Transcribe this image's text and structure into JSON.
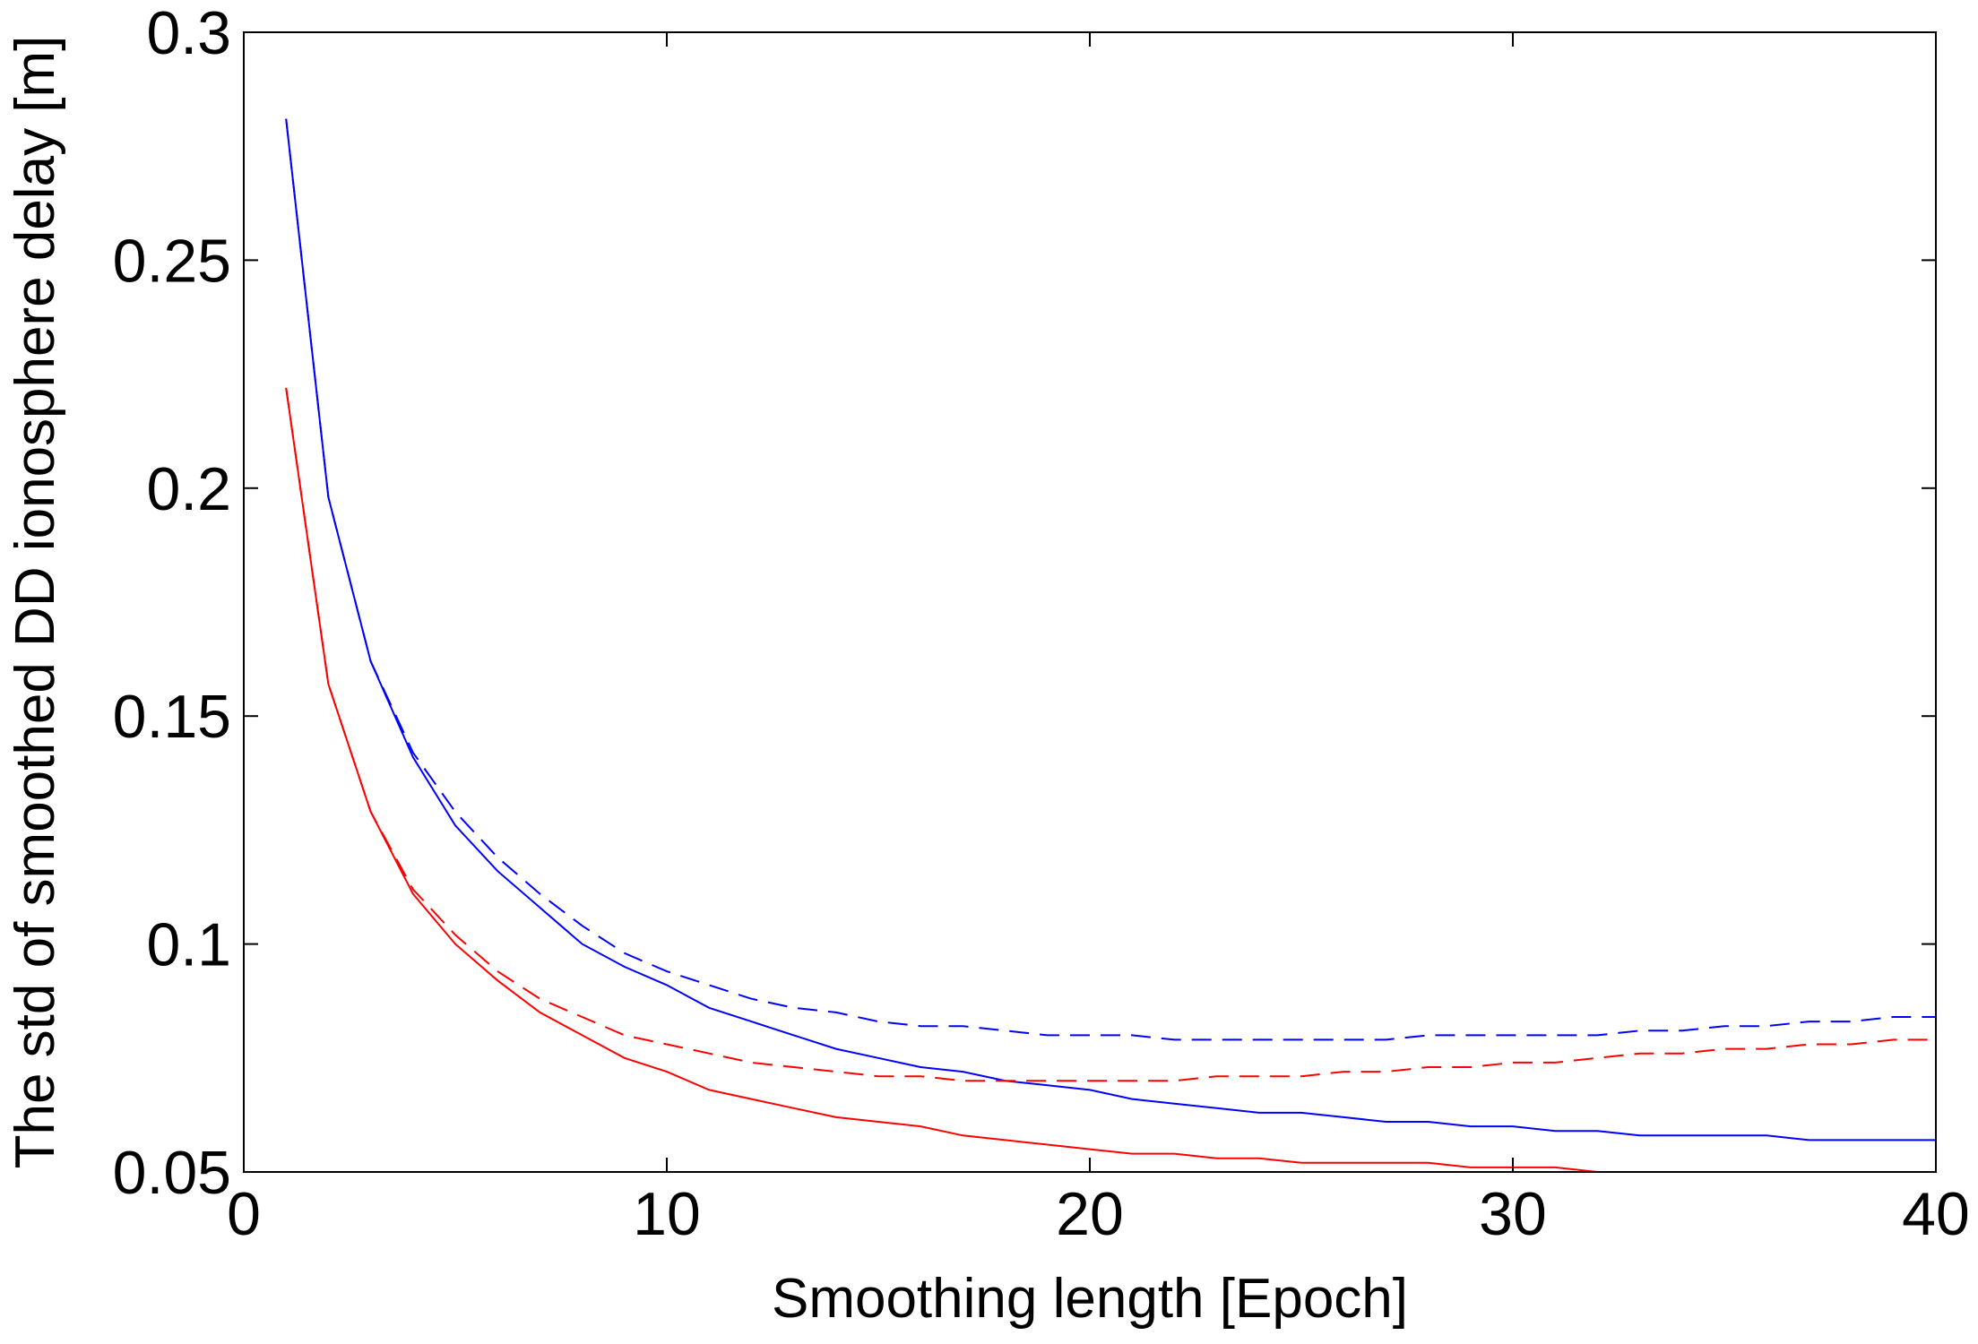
{
  "chart_data": {
    "type": "line",
    "title": "",
    "xlabel": "Smoothing length [Epoch]",
    "ylabel": "The std of smoothed DD ionosphere delay [m]",
    "xlim": [
      0,
      40
    ],
    "ylim": [
      0.05,
      0.3
    ],
    "xticks": [
      0,
      10,
      20,
      30,
      40
    ],
    "xtick_labels": [
      "0",
      "10",
      "20",
      "30",
      "40"
    ],
    "yticks": [
      0.05,
      0.1,
      0.15,
      0.2,
      0.25,
      0.3
    ],
    "ytick_labels": [
      "0.05",
      "0.1",
      "0.15",
      "0.2",
      "0.25",
      "0.3"
    ],
    "grid": false,
    "x": [
      1,
      2,
      3,
      4,
      5,
      6,
      7,
      8,
      9,
      10,
      11,
      12,
      13,
      14,
      15,
      16,
      17,
      18,
      19,
      20,
      21,
      22,
      23,
      24,
      25,
      26,
      27,
      28,
      29,
      30,
      31,
      32,
      33,
      34,
      35,
      36,
      37,
      38,
      39,
      40
    ],
    "series": [
      {
        "name": "blue-solid",
        "color": "#0000ff",
        "dash": "solid",
        "values": [
          0.281,
          0.198,
          0.162,
          0.141,
          0.126,
          0.116,
          0.108,
          0.1,
          0.095,
          0.091,
          0.086,
          0.083,
          0.08,
          0.077,
          0.075,
          0.073,
          0.072,
          0.07,
          0.069,
          0.068,
          0.066,
          0.065,
          0.064,
          0.063,
          0.063,
          0.062,
          0.061,
          0.061,
          0.06,
          0.06,
          0.059,
          0.059,
          0.058,
          0.058,
          0.058,
          0.058,
          0.057,
          0.057,
          0.057,
          0.057
        ]
      },
      {
        "name": "blue-dashed",
        "color": "#0000ff",
        "dash": "dashed",
        "values": [
          0.281,
          0.198,
          0.162,
          0.142,
          0.129,
          0.119,
          0.111,
          0.104,
          0.098,
          0.094,
          0.091,
          0.088,
          0.086,
          0.085,
          0.083,
          0.082,
          0.082,
          0.081,
          0.08,
          0.08,
          0.08,
          0.079,
          0.079,
          0.079,
          0.079,
          0.079,
          0.079,
          0.08,
          0.08,
          0.08,
          0.08,
          0.08,
          0.081,
          0.081,
          0.082,
          0.082,
          0.083,
          0.083,
          0.084,
          0.084
        ]
      },
      {
        "name": "red-solid",
        "color": "#ff0000",
        "dash": "solid",
        "values": [
          0.222,
          0.157,
          0.129,
          0.111,
          0.1,
          0.092,
          0.085,
          0.08,
          0.075,
          0.072,
          0.068,
          0.066,
          0.064,
          0.062,
          0.061,
          0.06,
          0.058,
          0.057,
          0.056,
          0.055,
          0.054,
          0.054,
          0.053,
          0.053,
          0.052,
          0.052,
          0.052,
          0.052,
          0.051,
          0.051,
          0.051,
          0.05,
          0.05,
          0.05,
          0.05,
          0.05,
          0.05,
          0.05,
          0.05,
          0.05
        ]
      },
      {
        "name": "red-dashed",
        "color": "#ff0000",
        "dash": "dashed",
        "values": [
          0.222,
          0.157,
          0.129,
          0.112,
          0.102,
          0.094,
          0.088,
          0.084,
          0.08,
          0.078,
          0.076,
          0.074,
          0.073,
          0.072,
          0.071,
          0.071,
          0.07,
          0.07,
          0.07,
          0.07,
          0.07,
          0.07,
          0.071,
          0.071,
          0.071,
          0.072,
          0.072,
          0.073,
          0.073,
          0.074,
          0.074,
          0.075,
          0.076,
          0.076,
          0.077,
          0.077,
          0.078,
          0.078,
          0.079,
          0.079
        ]
      }
    ]
  }
}
